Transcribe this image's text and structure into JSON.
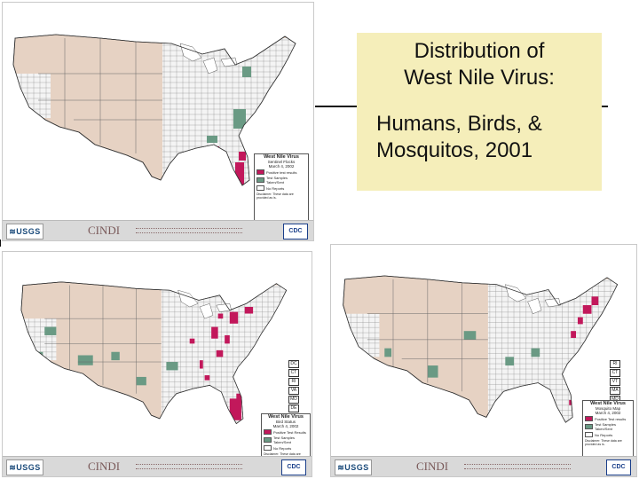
{
  "title": {
    "line1": "Distribution of",
    "line2": "West Nile Virus:",
    "line3": "Humans, Birds, &",
    "line4": "Mosquitos, 2001"
  },
  "maps": [
    {
      "id": "sentinel",
      "legend_title": "West Nile Virus",
      "legend_subtitle": "Sentinel Flocks",
      "legend_date": "March 4, 2002",
      "legend_items": [
        {
          "label": "Positive test results",
          "color": "#c2185b"
        },
        {
          "label": "Test Samples Taken/Sent",
          "color": "#6a9a84"
        },
        {
          "label": "No Reports",
          "color": "#ffffff"
        }
      ],
      "disclaimer": "Disclaimer: These data are provided as is.",
      "states": []
    },
    {
      "id": "bird",
      "legend_title": "West Nile Virus",
      "legend_subtitle": "Bird Status",
      "legend_date": "March 4, 2002",
      "legend_items": [
        {
          "label": "Positive Test Results",
          "color": "#c2185b"
        },
        {
          "label": "Test Samples Taken/Sent",
          "color": "#6a9a84"
        },
        {
          "label": "No Reports",
          "color": "#ffffff"
        }
      ],
      "disclaimer": "Disclaimer: These data are provided as is.",
      "states": [
        "DC",
        "CT",
        "RI",
        "VA",
        "MD",
        "DE"
      ]
    },
    {
      "id": "mosquito",
      "legend_title": "West Nile Virus",
      "legend_subtitle": "Mosquito Map",
      "legend_date": "March 4, 2002",
      "legend_items": [
        {
          "label": "Positive Test results",
          "color": "#c2185b"
        },
        {
          "label": "Test Samples Taken/Sent",
          "color": "#6a9a84"
        },
        {
          "label": "No Reports",
          "color": "#ffffff"
        }
      ],
      "disclaimer": "Disclaimer: These data are provided as is.",
      "states": [
        "RI",
        "CT",
        "VT",
        "MA",
        "MD",
        "NO",
        "DE"
      ]
    }
  ],
  "footer": {
    "usgs": "≋USGS",
    "cindi": "CINDI",
    "cdc": "CDC"
  },
  "colors": {
    "state_fill": "#e6d2c3",
    "county_fill": "#f4f4f4",
    "positive": "#c2185b",
    "tested": "#6a9a84",
    "water": "#ffffff",
    "title_box": "#f5eeba"
  }
}
